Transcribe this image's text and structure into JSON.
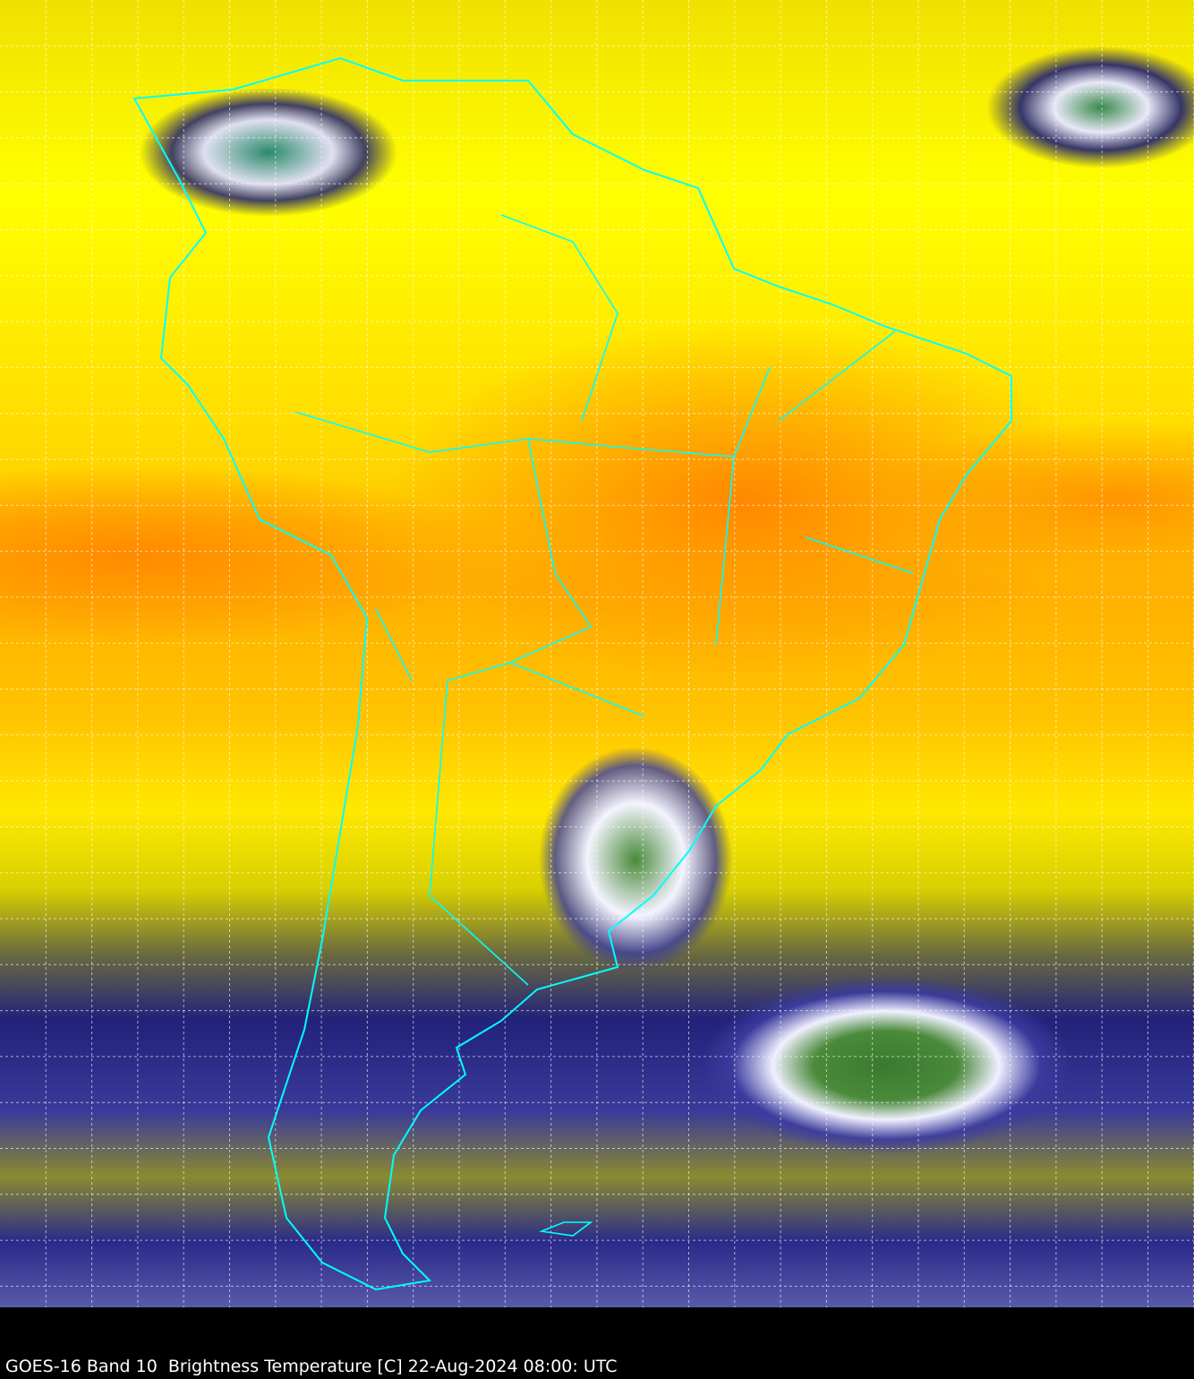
{
  "map": {
    "caption": "GOES-16 Band 10  Brightness Temperature [C] 22-Aug-2024 08:00: UTC",
    "region": "South America",
    "colors": {
      "boundary": "#00ffff",
      "grid": "#ffffff",
      "warm": "#ff8c00",
      "mid": "#ffff00",
      "cold": "#1a1a80",
      "coldest": "#3a7a30"
    },
    "gridlines": "dashed"
  }
}
